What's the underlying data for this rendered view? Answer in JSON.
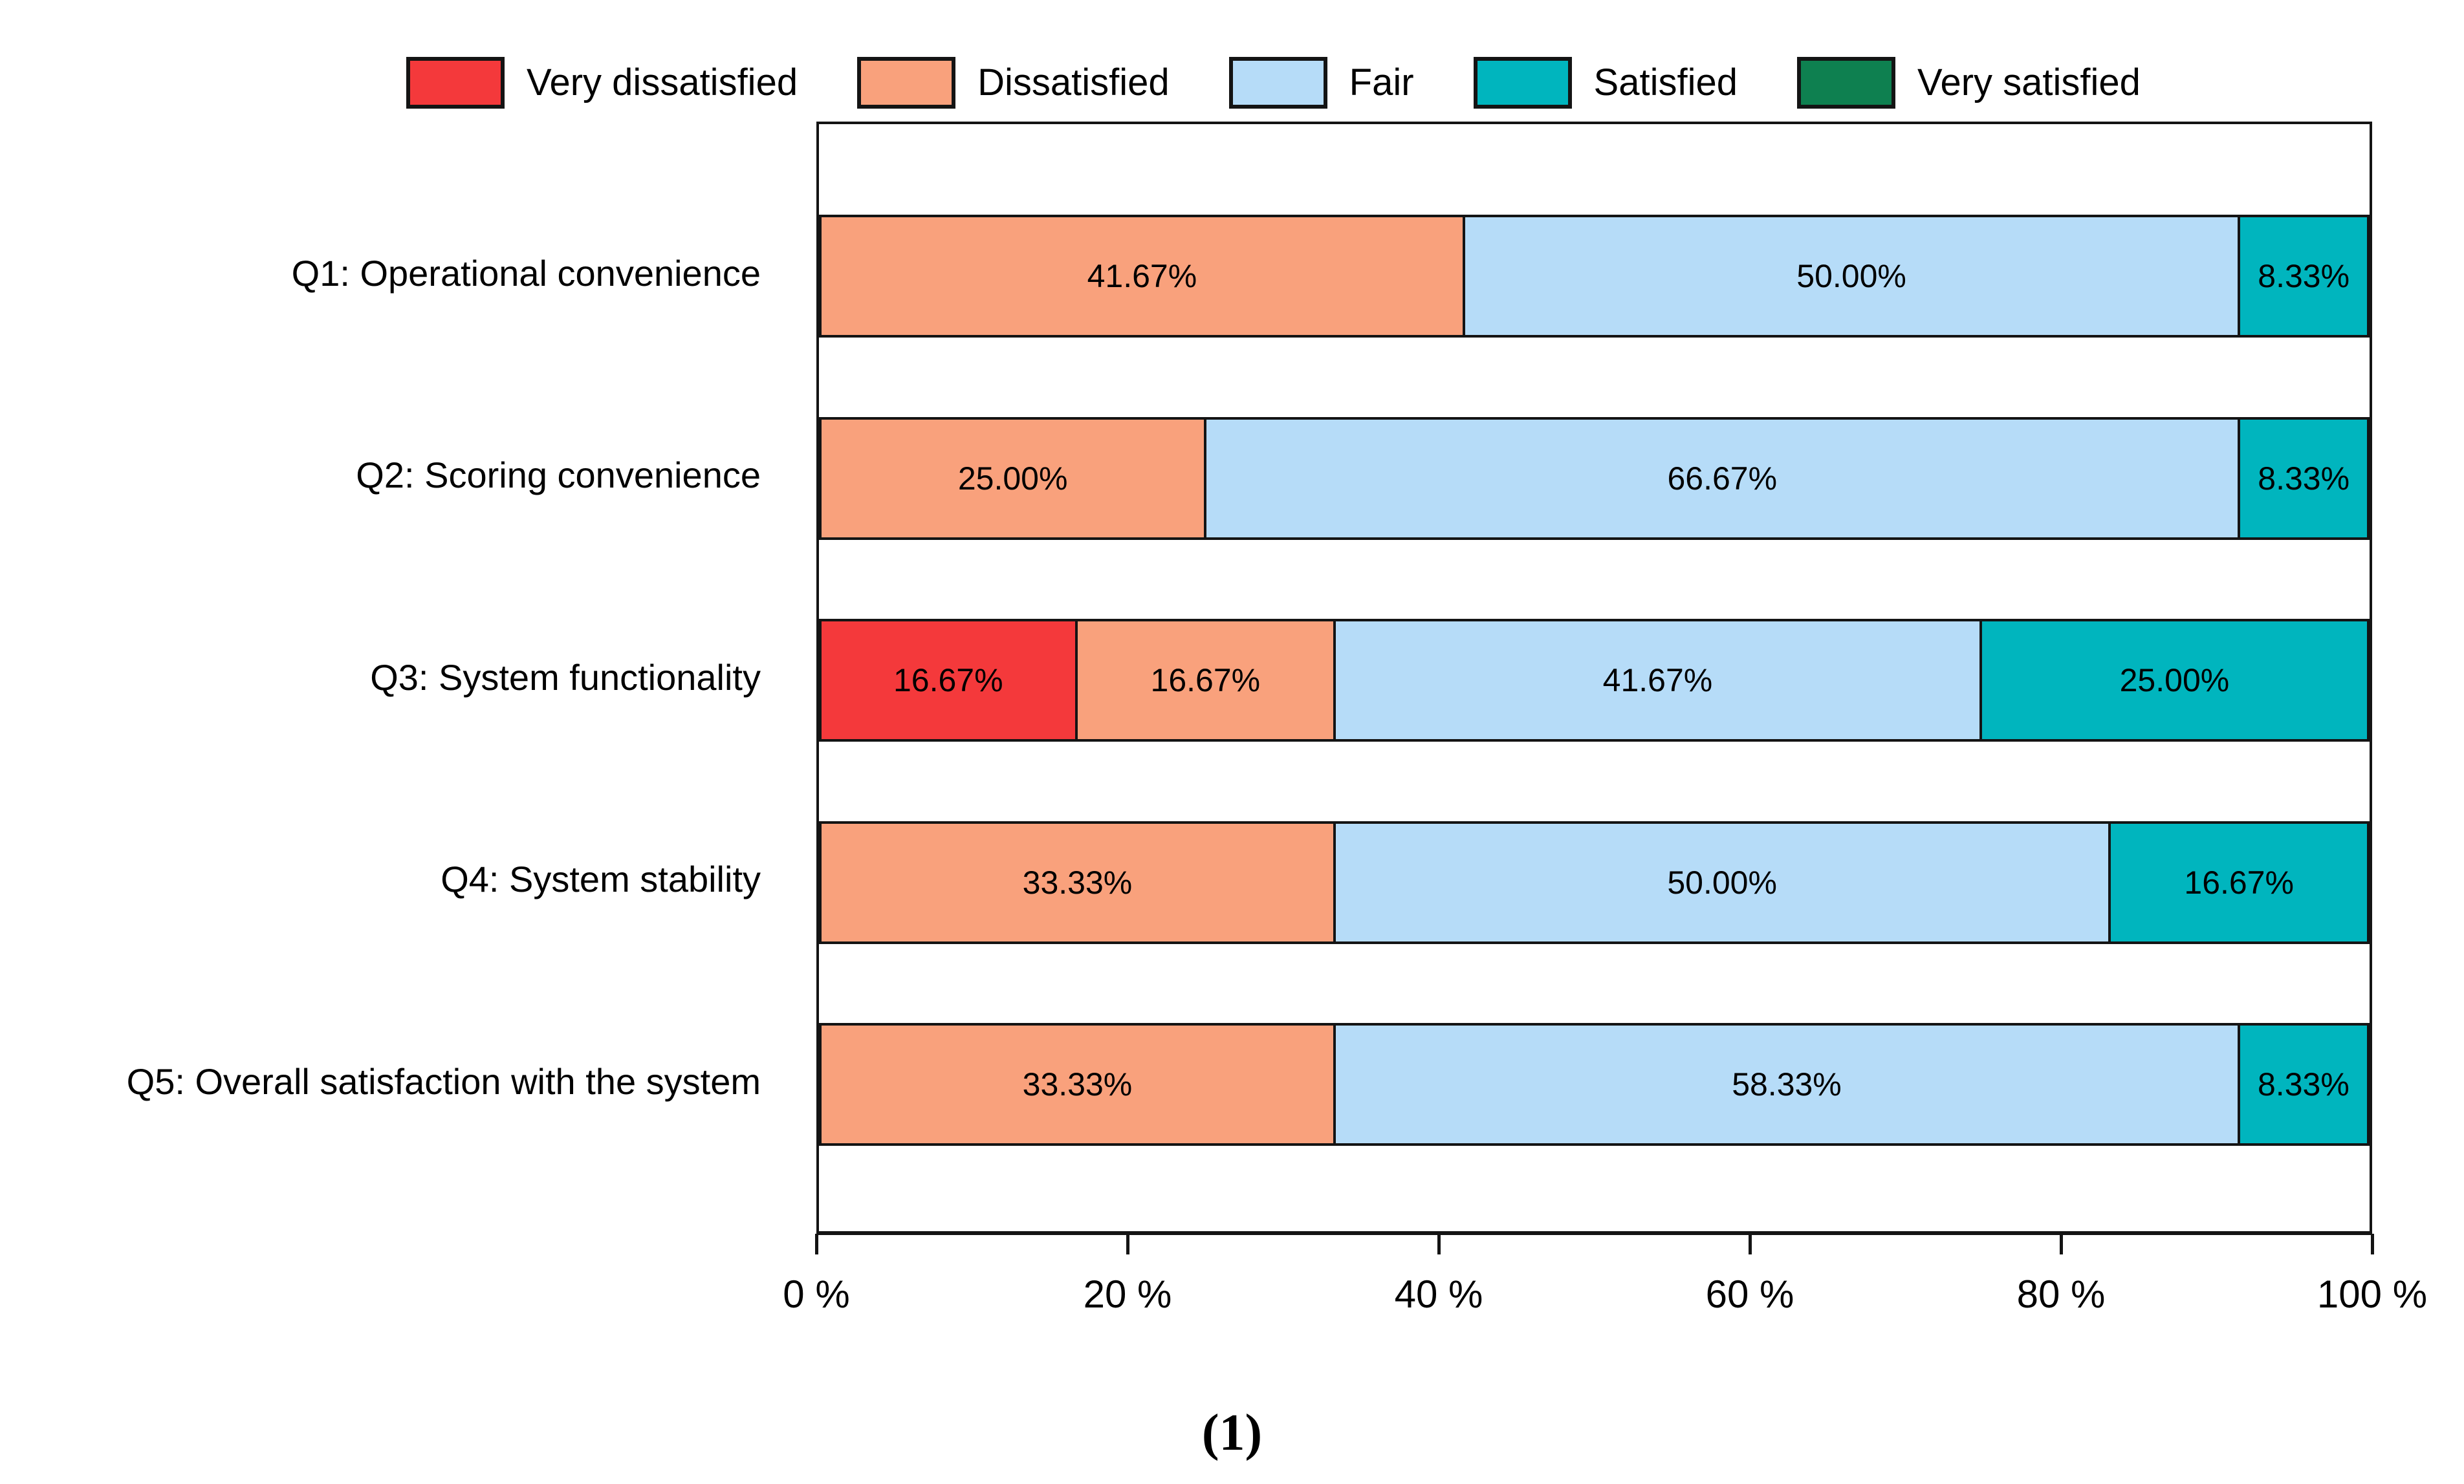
{
  "figure": {
    "caption": "(1)"
  },
  "colors": {
    "very_dissatisfied": "#F4393B",
    "dissatisfied": "#F9A17C",
    "fair": "#B6DCF8",
    "satisfied": "#00B5BE",
    "very_satisfied": "#0E8050",
    "border": "#141414",
    "text": "#000000"
  },
  "legend": {
    "items": [
      {
        "label": "Very dissatisfied",
        "color": "#F4393B"
      },
      {
        "label": "Dissatisfied",
        "color": "#F9A17C"
      },
      {
        "label": "Fair",
        "color": "#B6DCF8"
      },
      {
        "label": "Satisfied",
        "color": "#00B5BE"
      },
      {
        "label": "Very satisfied",
        "color": "#0E8050"
      }
    ]
  },
  "chart_data": {
    "type": "bar",
    "orientation": "horizontal",
    "stacked": true,
    "title": "",
    "xlabel": "",
    "ylabel": "",
    "unit": "%",
    "categories": [
      "Q1: Operational convenience",
      "Q2: Scoring convenience",
      "Q3: System functionality",
      "Q4: System stability",
      "Q5: Overall satisfaction with the system"
    ],
    "series": [
      {
        "name": "Very dissatisfied",
        "color": "#F4393B",
        "values": [
          0,
          0,
          16.67,
          0,
          0
        ]
      },
      {
        "name": "Dissatisfied",
        "color": "#F9A17C",
        "values": [
          41.67,
          25.0,
          16.67,
          33.33,
          33.33
        ]
      },
      {
        "name": "Fair",
        "color": "#B6DCF8",
        "values": [
          50.0,
          66.67,
          41.67,
          50.0,
          58.33
        ]
      },
      {
        "name": "Satisfied",
        "color": "#00B5BE",
        "values": [
          8.33,
          8.33,
          25.0,
          16.67,
          8.33
        ]
      },
      {
        "name": "Very satisfied",
        "color": "#0E8050",
        "values": [
          0,
          0,
          0,
          0,
          0
        ]
      }
    ],
    "value_labels_visible": true,
    "value_label_format": "0.00%",
    "xlim": [
      0,
      100
    ],
    "xticks": [
      0,
      20,
      40,
      60,
      80,
      100
    ],
    "xtick_labels": [
      "0 %",
      "20 %",
      "40 %",
      "60 %",
      "80 %",
      "100 %"
    ],
    "legend_position": "top",
    "grid": false
  }
}
